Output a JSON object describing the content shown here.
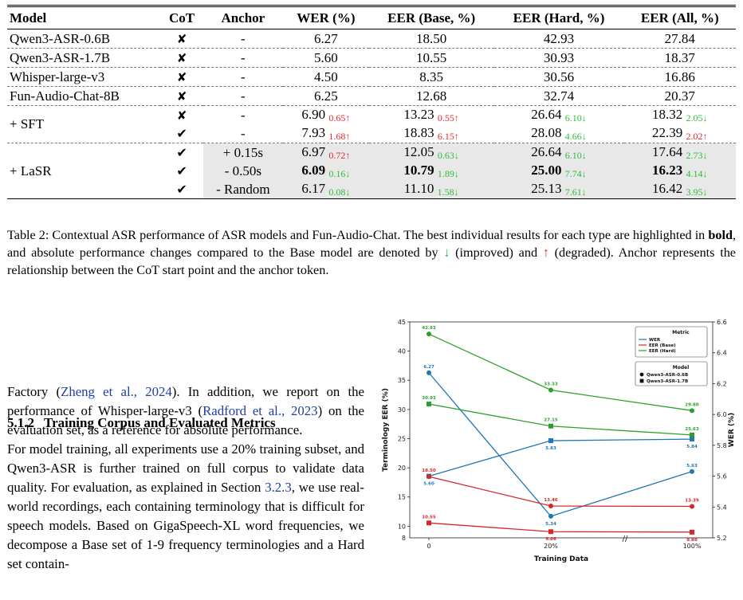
{
  "table": {
    "headers": [
      "Model",
      "CoT",
      "Anchor",
      "WER (%)",
      "EER (Base, %)",
      "EER (Hard, %)",
      "EER (All, %)"
    ],
    "rows": [
      {
        "model": "Qwen3-ASR-0.6B",
        "cot": "✘",
        "anchor": "-",
        "wer": "6.27",
        "base": "18.50",
        "hard": "42.93",
        "all": "27.84"
      },
      {
        "model": "Qwen3-ASR-1.7B",
        "cot": "✘",
        "anchor": "-",
        "wer": "5.60",
        "base": "10.55",
        "hard": "30.93",
        "all": "18.37"
      },
      {
        "model": "Whisper-large-v3",
        "cot": "✘",
        "anchor": "-",
        "wer": "4.50",
        "base": "8.35",
        "hard": "30.56",
        "all": "16.86"
      },
      {
        "model": "Fun-Audio-Chat-8B",
        "cot": "✘",
        "anchor": "-",
        "wer": "6.25",
        "base": "12.68",
        "hard": "32.74",
        "all": "20.37"
      }
    ],
    "sft_label": "+ SFT",
    "sft_rows": [
      {
        "cot": "✘",
        "anchor": "-",
        "wer": "6.90",
        "wer_d": "0.65↑",
        "base": "13.23",
        "base_d": "0.55↑",
        "hard": "26.64",
        "hard_d": "6.10↓",
        "all": "18.32",
        "all_d": "2.05↓"
      },
      {
        "cot": "✔",
        "anchor": "-",
        "wer": "7.93",
        "wer_d": "1.68↑",
        "base": "18.83",
        "base_d": "6.15↑",
        "hard": "28.08",
        "hard_d": "4.66↓",
        "all": "22.39",
        "all_d": "2.02↑"
      }
    ],
    "lasr_label": "+ LaSR",
    "lasr_rows": [
      {
        "cot": "✔",
        "anchor": "+ 0.15s",
        "wer": "6.97",
        "wer_d": "0.72↑",
        "base": "12.05",
        "base_d": "0.63↓",
        "hard": "26.64",
        "hard_d": "6.10↓",
        "all": "17.64",
        "all_d": "2.73↓"
      },
      {
        "cot": "✔",
        "anchor": "- 0.50s",
        "wer": "6.09",
        "wer_d": "0.16↓",
        "base": "10.79",
        "base_d": "1.89↓",
        "hard": "25.00",
        "hard_d": "7.74↓",
        "all": "16.23",
        "all_d": "4.14↓"
      },
      {
        "cot": "✔",
        "anchor": "- Random",
        "wer": "6.17",
        "wer_d": "0.08↓",
        "base": "11.10",
        "base_d": "1.58↓",
        "hard": "25.13",
        "hard_d": "7.61↓",
        "all": "16.42",
        "all_d": "3.95↓"
      }
    ]
  },
  "caption": {
    "part1": "Table 2: Contextual ASR performance of ASR models and Fun-Audio-Chat. The best individual results for each type are highlighted in ",
    "bold": "bold",
    "part2": ", and absolute performance changes compared to the Base model are denoted by ",
    "down": "↓",
    "part3": " (improved) and ",
    "up": "↑",
    "part4": " (degraded). Anchor represents the relationship between the CoT start point and the anchor token."
  },
  "body": {
    "p1_a": "Factory (",
    "p1_link1": "Zheng et al., 2024",
    "p1_b": "). In addition, we report on the performance of Whisper-large-v3 (",
    "p1_link2": "Radford et al., 2023",
    "p1_c": ") on the evaluation set, as a reference for absolute performance.",
    "subsec_num": "5.1.2",
    "subsec_title": "Training Corpus and Evaluated Metrics",
    "p2_a": "For model training, all experiments use a 20% training subset, and Qwen3-ASR is further trained on full corpus to validate data quality. For evaluation, as explained in Section ",
    "p2_link": "3.2.3",
    "p2_b": ", we use real-world recordings, each containing terminology that is difficult for speech models. Based on GigaSpeech-XL word frequencies, we decompose a Base set of 1-9 frequency terminologies and a Hard set contain-"
  },
  "chart_data": {
    "type": "line",
    "categories": [
      "0",
      "20%",
      "100%"
    ],
    "xlabel": "Training Data",
    "ylabel_left": "Terminology EER (%)",
    "ylabel_right": "WER (%)",
    "ylim_left": [
      8,
      45
    ],
    "yticks_left": [
      10,
      15,
      20,
      25,
      30,
      35,
      40,
      45
    ],
    "ytick_left_extra": "8",
    "ylim_right": [
      5.2,
      6.6
    ],
    "yticks_right": [
      5.2,
      5.4,
      5.6,
      5.8,
      6.0,
      6.2,
      6.4,
      6.6
    ],
    "legend_metric_title": "Metric",
    "legend_metric": [
      "WER",
      "EER (Base)",
      "EER (Hard)"
    ],
    "legend_model_title": "Model",
    "legend_model": [
      "Qwen3-ASR-0.6B",
      "Qwen3-ASR-1.7B"
    ],
    "colors": {
      "wer": "#1f77b4",
      "base": "#d62728",
      "hard": "#2ca02c"
    },
    "series": [
      {
        "metric": "wer",
        "model": "0.6B",
        "axis": "right",
        "values": [
          6.27,
          5.34,
          5.63
        ],
        "labels": [
          "6.27",
          "5.34",
          "5.63"
        ]
      },
      {
        "metric": "wer",
        "model": "1.7B",
        "axis": "right",
        "values": [
          5.6,
          5.83,
          5.84
        ],
        "labels": [
          "5.60",
          "5.83",
          "5.84"
        ]
      },
      {
        "metric": "base",
        "model": "0.6B",
        "axis": "left",
        "values": [
          18.5,
          13.46,
          13.39
        ],
        "labels": [
          "18.50",
          "13.46",
          "13.39"
        ]
      },
      {
        "metric": "base",
        "model": "1.7B",
        "axis": "left",
        "values": [
          10.55,
          9.06,
          8.98
        ],
        "labels": [
          "10.55",
          "9.06",
          "8.98"
        ]
      },
      {
        "metric": "hard",
        "model": "0.6B",
        "axis": "left",
        "values": [
          42.93,
          33.33,
          29.8
        ],
        "labels": [
          "42.93",
          "33.33",
          "29.80"
        ]
      },
      {
        "metric": "hard",
        "model": "1.7B",
        "axis": "left",
        "values": [
          30.93,
          27.15,
          25.63
        ],
        "labels": [
          "30.93",
          "27.15",
          "25.63"
        ]
      }
    ]
  }
}
